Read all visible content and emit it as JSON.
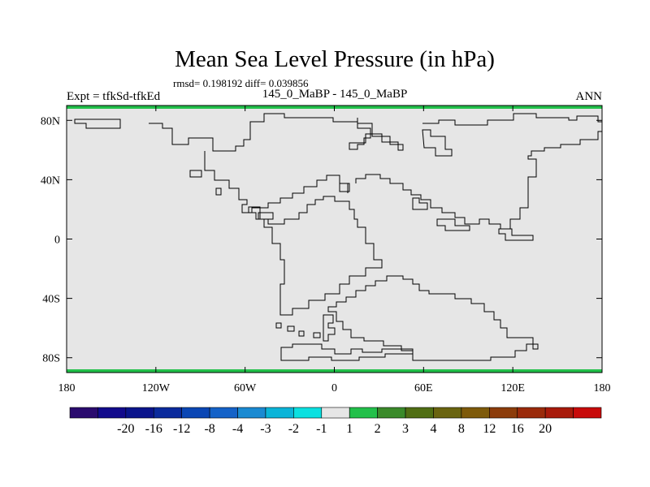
{
  "chart_data": {
    "type": "heatmap",
    "title": "Mean Sea Level Pressure (in hPa)",
    "stats_label": "rmsd= 0.198192 diff= 0.039856",
    "left_label": "Expt = tfkSd-tfkEd",
    "center_label": "145_0_MaBP - 145_0_MaBP",
    "right_label": "ANN",
    "xlim": [
      -180,
      180
    ],
    "ylim": [
      -90,
      90
    ],
    "x_ticks": [
      {
        "value": -180,
        "label": "180"
      },
      {
        "value": -120,
        "label": "120W"
      },
      {
        "value": -60,
        "label": "60W"
      },
      {
        "value": 0,
        "label": "0"
      },
      {
        "value": 60,
        "label": "60E"
      },
      {
        "value": 120,
        "label": "120E"
      },
      {
        "value": 180,
        "label": "180"
      }
    ],
    "y_ticks": [
      {
        "value": 80,
        "label": "80N"
      },
      {
        "value": 40,
        "label": "40N"
      },
      {
        "value": 0,
        "label": "0"
      },
      {
        "value": -40,
        "label": "40S"
      },
      {
        "value": -80,
        "label": "80S"
      }
    ],
    "field_fill": "#e6e6e6",
    "field_band_value": "-1 to 1",
    "boundary_color": "#22c04a",
    "colorbar": {
      "colors": [
        "#2a0a6e",
        "#120a8c",
        "#0a148c",
        "#0a2a9c",
        "#0a46b4",
        "#1462c8",
        "#1a8ad2",
        "#0ab4d8",
        "#0ae0e0",
        "#e6e6e6",
        "#22c04a",
        "#3a8a2a",
        "#506e14",
        "#6a6410",
        "#7e5a0a",
        "#8c3c0a",
        "#9a2a0a",
        "#a81a0a",
        "#c80a0a"
      ],
      "labels": [
        "-20",
        "-16",
        "-12",
        "-8",
        "-4",
        "-3",
        "-2",
        "-1",
        "1",
        "2",
        "3",
        "4",
        "8",
        "12",
        "16",
        "20"
      ]
    }
  }
}
